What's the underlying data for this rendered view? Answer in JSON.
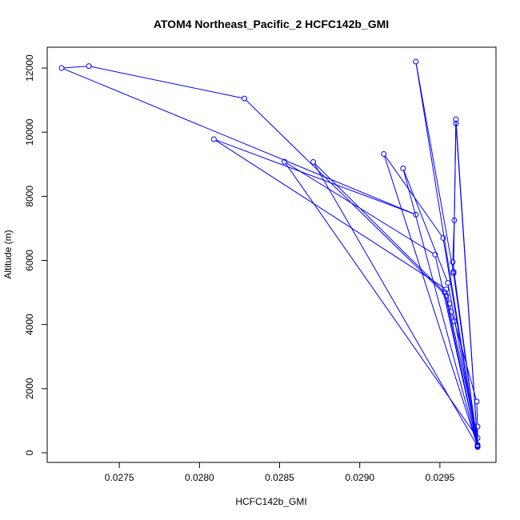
{
  "chart_data": {
    "type": "line",
    "title": "ATOM4 Northeast_Pacific_2 HCFC142b_GMI",
    "xlabel": "HCFC142b_GMI",
    "ylabel": "Altitude (m)",
    "xlim": [
      0.02705,
      0.02985
    ],
    "ylim": [
      -300,
      12650
    ],
    "x_ticks": [
      0.0275,
      0.028,
      0.0285,
      0.029,
      0.0295
    ],
    "x_tick_labels": [
      "0.0275",
      "0.0280",
      "0.0285",
      "0.0290",
      "0.0295"
    ],
    "y_ticks": [
      0,
      2000,
      4000,
      6000,
      8000,
      10000,
      12000
    ],
    "y_tick_labels": [
      "0",
      "2000",
      "4000",
      "6000",
      "8000",
      "10000",
      "12000"
    ],
    "grid": false,
    "legend": "none",
    "colors": {
      "series": "#0000ff",
      "axis": "#000000",
      "background": "#ffffff"
    },
    "series": [
      {
        "marker": "open-circle",
        "line": true,
        "points": [
          {
            "x": 0.029735,
            "y": 180
          },
          {
            "x": 0.029735,
            "y": 820
          },
          {
            "x": 0.02973,
            "y": 1600
          },
          {
            "x": 0.02959,
            "y": 4100
          },
          {
            "x": 0.02957,
            "y": 4400
          },
          {
            "x": 0.02956,
            "y": 4650
          },
          {
            "x": 0.02954,
            "y": 5100
          },
          {
            "x": 0.02809,
            "y": 9780
          },
          {
            "x": 0.02935,
            "y": 7430
          },
          {
            "x": 0.02714,
            "y": 12000
          },
          {
            "x": 0.02731,
            "y": 12060
          },
          {
            "x": 0.02828,
            "y": 11050
          },
          {
            "x": 0.02954,
            "y": 4900
          },
          {
            "x": 0.029735,
            "y": 460
          },
          {
            "x": 0.02853,
            "y": 9080
          },
          {
            "x": 0.02947,
            "y": 6180
          },
          {
            "x": 0.029735,
            "y": 200
          },
          {
            "x": 0.02871,
            "y": 9070
          },
          {
            "x": 0.02953,
            "y": 5000
          },
          {
            "x": 0.029735,
            "y": 210
          },
          {
            "x": 0.02915,
            "y": 9320
          },
          {
            "x": 0.02952,
            "y": 6700
          },
          {
            "x": 0.029735,
            "y": 190
          },
          {
            "x": 0.02927,
            "y": 8870
          },
          {
            "x": 0.02955,
            "y": 5300
          },
          {
            "x": 0.029735,
            "y": 220
          },
          {
            "x": 0.02935,
            "y": 12200
          },
          {
            "x": 0.029585,
            "y": 5600
          },
          {
            "x": 0.029735,
            "y": 250
          },
          {
            "x": 0.0296,
            "y": 10400
          },
          {
            "x": 0.02959,
            "y": 7250
          },
          {
            "x": 0.02958,
            "y": 5950
          },
          {
            "x": 0.029735,
            "y": 230
          },
          {
            "x": 0.0296,
            "y": 10270
          },
          {
            "x": 0.029585,
            "y": 5650
          },
          {
            "x": 0.029735,
            "y": 200
          }
        ]
      }
    ]
  }
}
